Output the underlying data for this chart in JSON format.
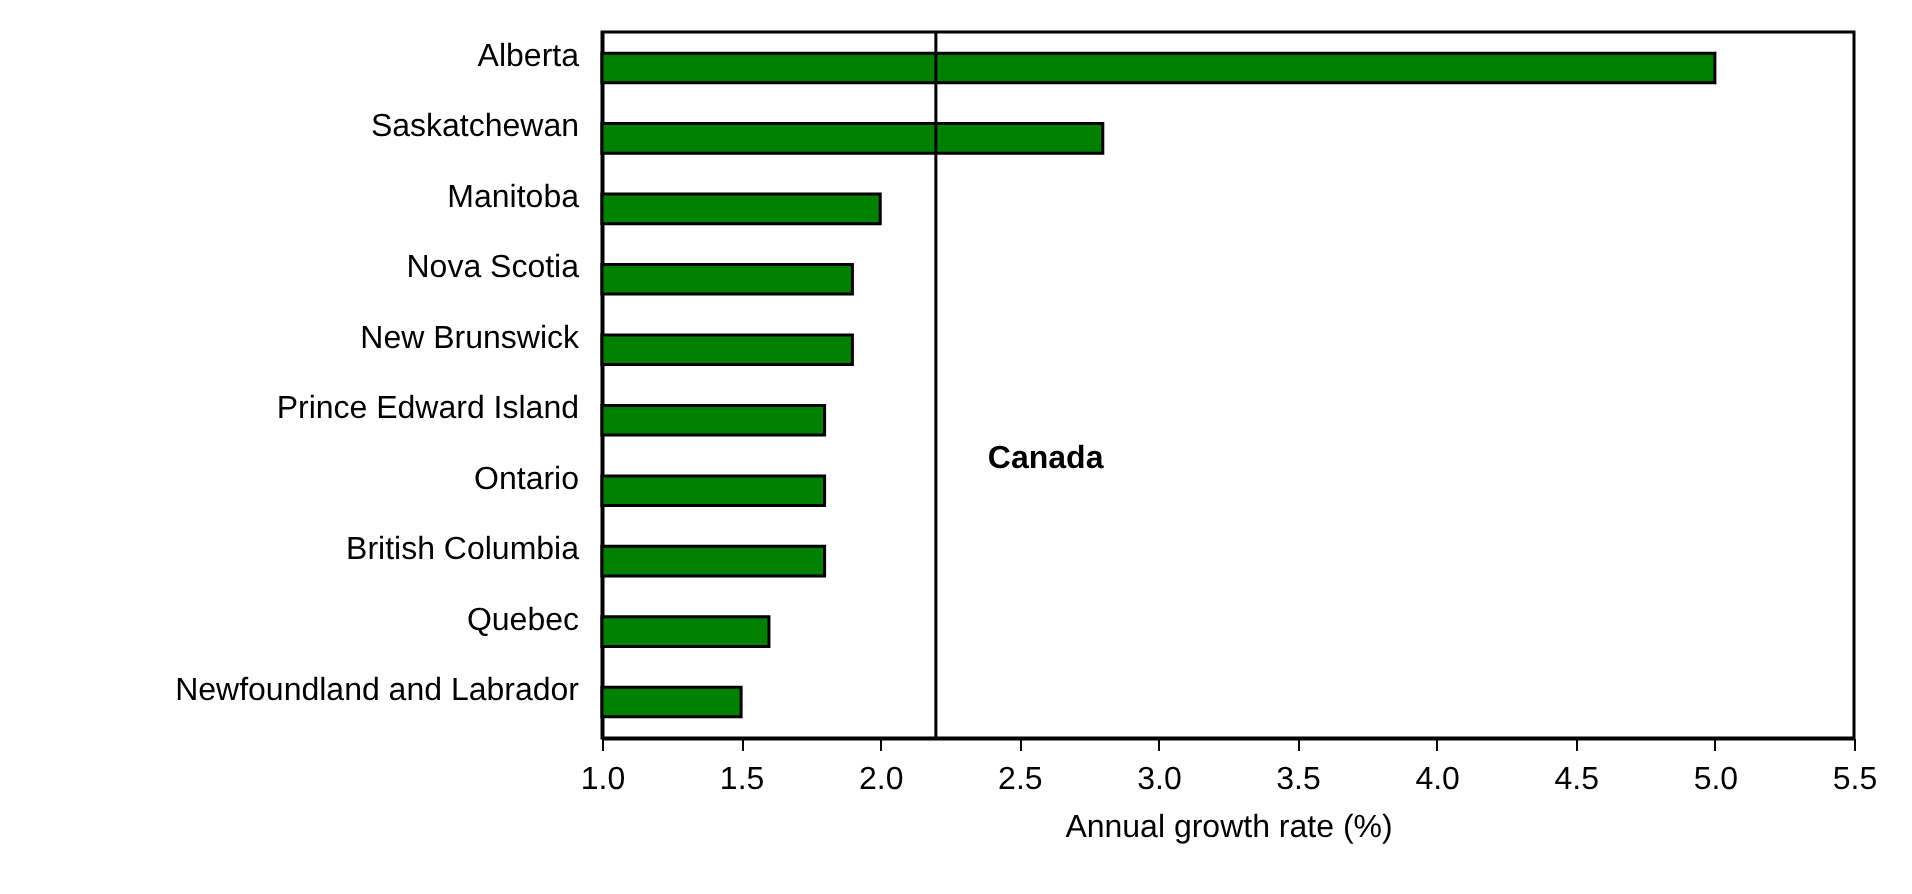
{
  "chart_data": {
    "type": "bar",
    "orientation": "horizontal",
    "xlabel": "Annual growth rate (%)",
    "categories": [
      "Alberta",
      "Saskatchewan",
      "Manitoba",
      "Nova Scotia",
      "New Brunswick",
      "Prince Edward Island",
      "Ontario",
      "British Columbia",
      "Quebec",
      "Newfoundland and Labrador"
    ],
    "values": [
      5.0,
      2.8,
      2.0,
      1.9,
      1.9,
      1.8,
      1.8,
      1.8,
      1.6,
      1.5
    ],
    "color": "#008000",
    "xlim": [
      1.0,
      5.5
    ],
    "xticks": [
      {
        "value": 1,
        "label": "1.0"
      },
      {
        "value": 1.5,
        "label": "1.5"
      },
      {
        "value": 2,
        "label": "2.0"
      },
      {
        "value": 2.5,
        "label": "2.5"
      },
      {
        "value": 3,
        "label": "3.0"
      },
      {
        "value": 3.5,
        "label": "3.5"
      },
      {
        "value": 4,
        "label": "4.0"
      },
      {
        "value": 4.5,
        "label": "4.5"
      },
      {
        "value": 5,
        "label": "5.0"
      },
      {
        "value": 5.5,
        "label": "5.5"
      }
    ],
    "ref_lines": [
      {
        "axis": "x",
        "value": 2.2,
        "label": "Canada"
      }
    ],
    "grid": false
  }
}
